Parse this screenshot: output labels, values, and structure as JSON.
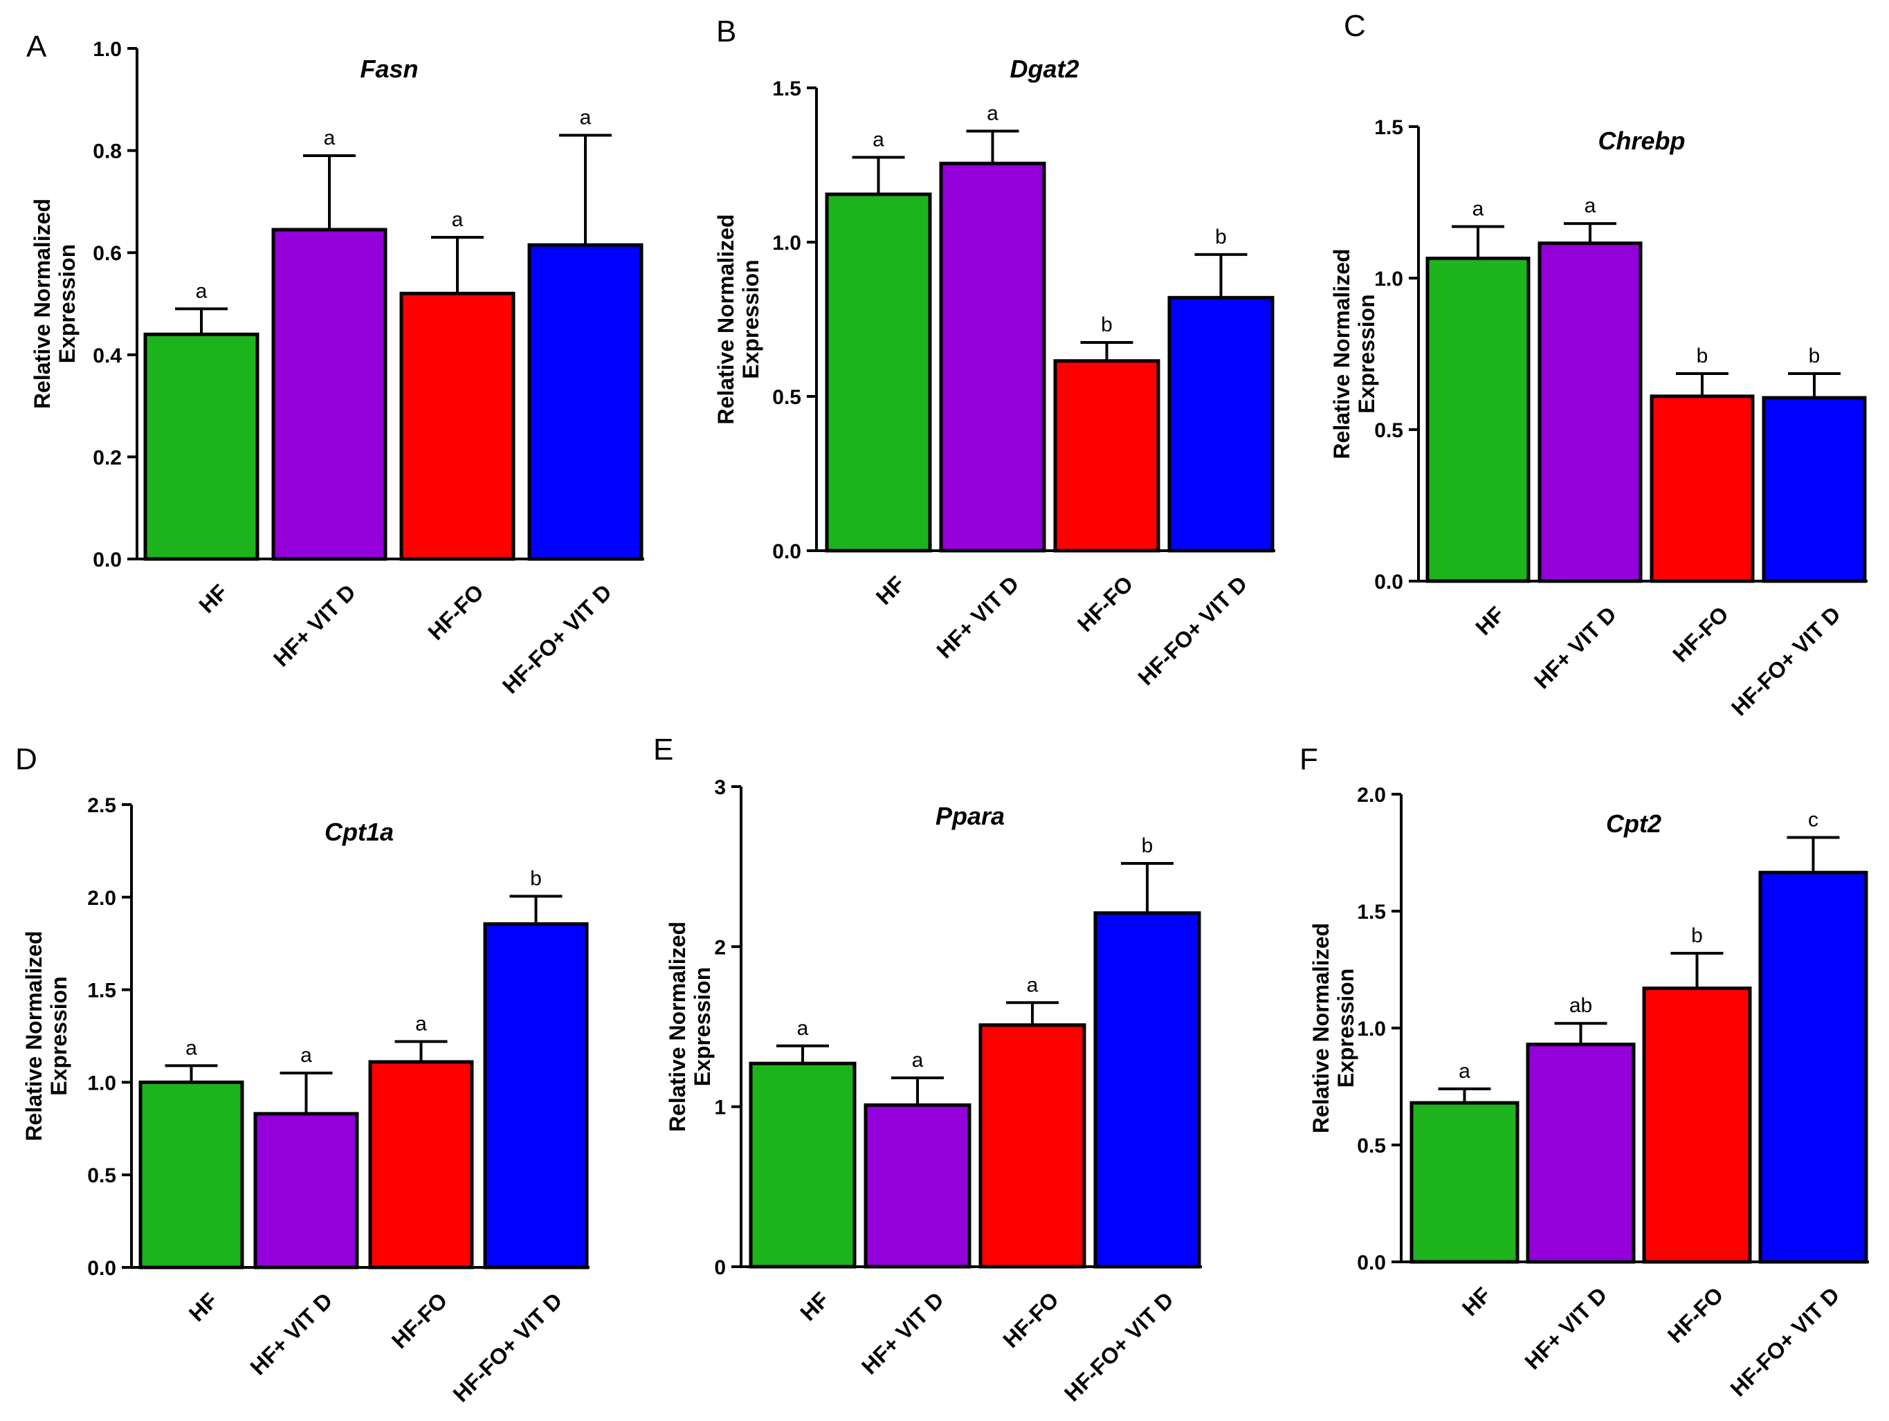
{
  "figure": {
    "description_title": ""
  },
  "colors": [
    "#1db31d",
    "#9400d9",
    "#ff0000",
    "#0000ff"
  ],
  "chart_data": [
    {
      "panel": "A",
      "type": "bar",
      "title": "Fasn",
      "categories": [
        "HF",
        "HF+ VIT D",
        "HF-FO",
        "HF-FO+ VIT D"
      ],
      "values": [
        0.44,
        0.645,
        0.52,
        0.615
      ],
      "errors": [
        0.05,
        0.145,
        0.11,
        0.215
      ],
      "letters": [
        "a",
        "a",
        "a",
        "a"
      ],
      "ylabel": [
        "Relative Normalized",
        "Expression"
      ],
      "ylim": [
        0,
        1.0
      ],
      "yticks": [
        "0.0",
        "0.2",
        "0.4",
        "0.6",
        "0.8",
        "1.0"
      ]
    },
    {
      "panel": "B",
      "type": "bar",
      "title": "Dgat2",
      "categories": [
        "HF",
        "HF+ VIT D",
        "HF-FO",
        "HF-FO+ VIT D"
      ],
      "values": [
        1.155,
        1.255,
        0.615,
        0.82
      ],
      "errors": [
        0.12,
        0.105,
        0.06,
        0.14
      ],
      "letters": [
        "a",
        "a",
        "b",
        "b"
      ],
      "ylabel": [
        "Relative Normalized",
        "Expression"
      ],
      "ylim": [
        0,
        1.5
      ],
      "yticks": [
        "0.0",
        "0.5",
        "1.0",
        "1.5"
      ]
    },
    {
      "panel": "C",
      "type": "bar",
      "title": "Chrebp",
      "categories": [
        "HF",
        "HF+ VIT D",
        "HF-FO",
        "HF-FO+ VIT D"
      ],
      "values": [
        1.065,
        1.115,
        0.61,
        0.605
      ],
      "errors": [
        0.105,
        0.065,
        0.075,
        0.08
      ],
      "letters": [
        "a",
        "a",
        "b",
        "b"
      ],
      "ylabel": [
        "Relative Normalized",
        "Expression"
      ],
      "ylim": [
        0,
        1.5
      ],
      "yticks": [
        "0.0",
        "0.5",
        "1.0",
        "1.5"
      ]
    },
    {
      "panel": "D",
      "type": "bar",
      "title": "Cpt1a",
      "categories": [
        "HF",
        "HF+ VIT D",
        "HF-FO",
        "HF-FO+ VIT D"
      ],
      "values": [
        1.0,
        0.83,
        1.11,
        1.855
      ],
      "errors": [
        0.09,
        0.22,
        0.11,
        0.15
      ],
      "letters": [
        "a",
        "a",
        "a",
        "b"
      ],
      "ylabel": [
        "Relative Normalized",
        "Expression"
      ],
      "ylim": [
        0,
        2.5
      ],
      "yticks": [
        "0.0",
        "0.5",
        "1.0",
        "1.5",
        "2.0",
        "2.5"
      ]
    },
    {
      "panel": "E",
      "type": "bar",
      "title": "Ppara",
      "categories": [
        "HF",
        "HF+ VIT D",
        "HF-FO",
        "HF-FO+ VIT D"
      ],
      "values": [
        1.27,
        1.01,
        1.51,
        2.21
      ],
      "errors": [
        0.11,
        0.17,
        0.14,
        0.31
      ],
      "letters": [
        "a",
        "a",
        "a",
        "b"
      ],
      "ylabel": [
        "Relative Normalized",
        "Expression"
      ],
      "ylim": [
        0,
        3
      ],
      "yticks": [
        "0",
        "1",
        "2",
        "3"
      ]
    },
    {
      "panel": "F",
      "type": "bar",
      "title": "Cpt2",
      "categories": [
        "HF",
        "HF+ VIT D",
        "HF-FO",
        "HF-FO+ VIT D"
      ],
      "values": [
        0.68,
        0.93,
        1.17,
        1.665
      ],
      "errors": [
        0.06,
        0.09,
        0.15,
        0.15
      ],
      "letters": [
        "a",
        "ab",
        "b",
        "c"
      ],
      "ylabel": [
        "Relative Normalized",
        "Expression"
      ],
      "ylim": [
        0,
        2.0
      ],
      "yticks": [
        "0.0",
        "0.5",
        "1.0",
        "1.5",
        "2.0"
      ]
    }
  ]
}
